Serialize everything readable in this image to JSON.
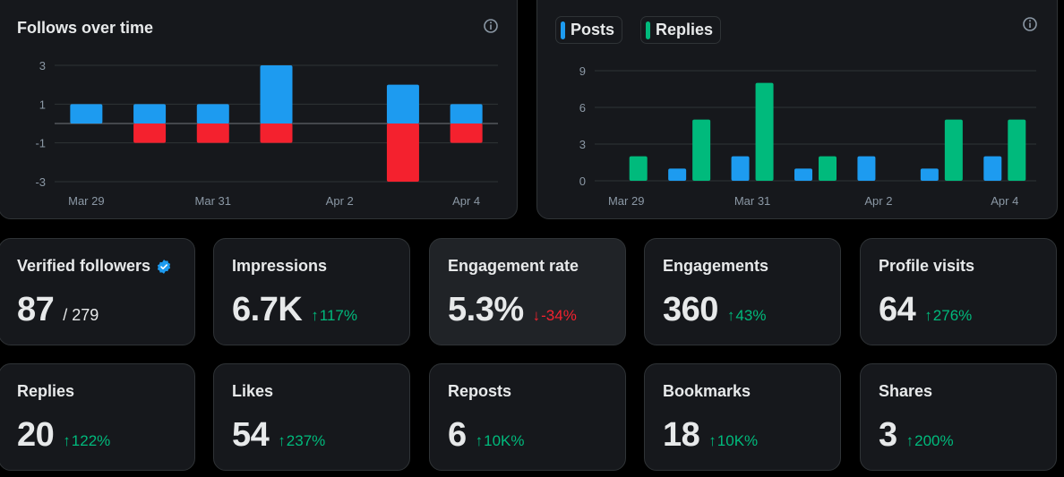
{
  "follows_chart": {
    "title": "Follows over time",
    "info_icon": "info-icon",
    "colors": {
      "gain": "#1d9bf0",
      "loss": "#f4212e",
      "grid": "#2f3336",
      "tick": "#8b98a5"
    },
    "chart_data": {
      "type": "bar",
      "stacked": true,
      "title": "Follows over time",
      "y_ticks": [
        "3",
        "1",
        "-1",
        "-3"
      ],
      "y_tick_values": [
        3,
        1,
        -1,
        -3
      ],
      "ylim": [
        -3,
        3
      ],
      "x_tick_labels": [
        "Mar 29",
        "Mar 31",
        "Apr 2",
        "Apr 4"
      ],
      "categories": [
        "Mar 29",
        "Mar 30",
        "Mar 31",
        "Apr 1",
        "Apr 2",
        "Apr 3",
        "Apr 4"
      ],
      "series": [
        {
          "values": [
            1,
            1,
            1,
            3,
            0,
            2,
            1
          ]
        },
        {
          "values": [
            0,
            -1,
            -1,
            -1,
            0,
            -3,
            -1
          ]
        }
      ],
      "grid": true
    }
  },
  "posts_chart": {
    "info_icon": "info-icon",
    "legend": [
      {
        "label": "Posts",
        "color": "#1d9bf0"
      },
      {
        "label": "Replies",
        "color": "#00ba7c"
      }
    ],
    "colors": {
      "grid": "#2f3336",
      "tick": "#8b98a5"
    },
    "chart_data": {
      "type": "bar",
      "y_ticks": [
        "9",
        "6",
        "3",
        "0"
      ],
      "y_tick_values": [
        9,
        6,
        3,
        0
      ],
      "ylim": [
        0,
        9
      ],
      "x_tick_labels": [
        "Mar 29",
        "Mar 31",
        "Apr 2",
        "Apr 4"
      ],
      "categories": [
        "Mar 29",
        "Mar 30",
        "Mar 31",
        "Apr 1",
        "Apr 2",
        "Apr 3",
        "Apr 4"
      ],
      "series": [
        {
          "name": "Posts",
          "values": [
            0,
            1,
            2,
            1,
            2,
            1,
            2
          ]
        },
        {
          "name": "Replies",
          "values": [
            2,
            5,
            8,
            2,
            0,
            5,
            5
          ]
        }
      ],
      "legend_position": "top-left",
      "grid": true
    }
  },
  "stats": {
    "verified_followers": {
      "label": "Verified followers",
      "value": "87",
      "total": "/ 279",
      "badge_icon": "verified-badge-icon"
    },
    "impressions": {
      "label": "Impressions",
      "value": "6.7K",
      "delta": "117%",
      "direction": "up"
    },
    "engagement_rate": {
      "label": "Engagement rate",
      "value": "5.3%",
      "delta": "-34%",
      "direction": "down"
    },
    "engagements": {
      "label": "Engagements",
      "value": "360",
      "delta": "43%",
      "direction": "up"
    },
    "profile_visits": {
      "label": "Profile visits",
      "value": "64",
      "delta": "276%",
      "direction": "up"
    },
    "replies": {
      "label": "Replies",
      "value": "20",
      "delta": "122%",
      "direction": "up"
    },
    "likes": {
      "label": "Likes",
      "value": "54",
      "delta": "237%",
      "direction": "up"
    },
    "reposts": {
      "label": "Reposts",
      "value": "6",
      "delta": "10K%",
      "direction": "up"
    },
    "bookmarks": {
      "label": "Bookmarks",
      "value": "18",
      "delta": "10K%",
      "direction": "up"
    },
    "shares": {
      "label": "Shares",
      "value": "3",
      "delta": "200%",
      "direction": "up"
    }
  },
  "symbols": {
    "arrow_up": "↑",
    "arrow_down": "↓"
  }
}
